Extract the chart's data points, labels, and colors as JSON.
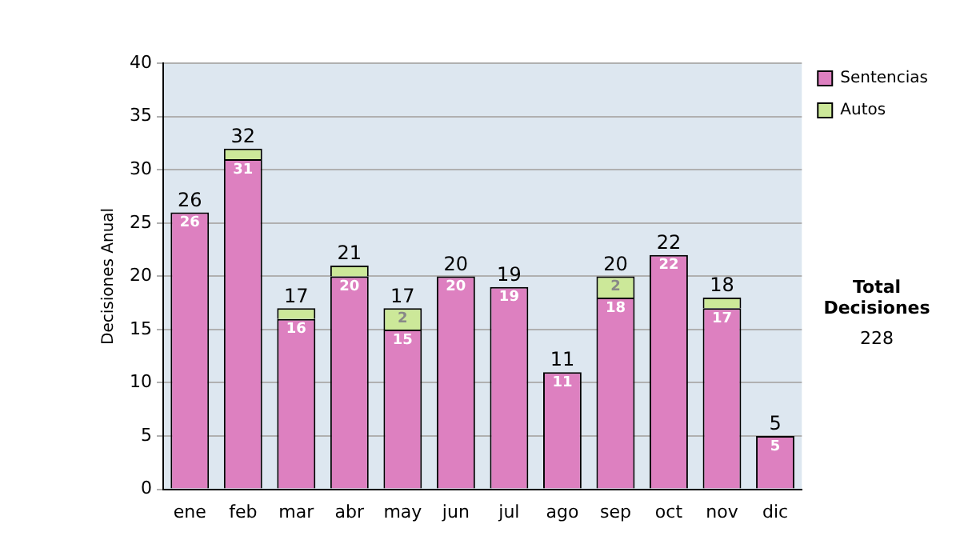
{
  "chart_data": {
    "type": "bar",
    "ylabel": "Decisiones Anual",
    "categories": [
      "ene",
      "feb",
      "mar",
      "abr",
      "may",
      "jun",
      "jul",
      "ago",
      "sep",
      "oct",
      "nov",
      "dic"
    ],
    "series": [
      {
        "name": "Sentencias",
        "color": "#dd80c0",
        "values": [
          26,
          31,
          16,
          20,
          15,
          20,
          19,
          11,
          18,
          22,
          17,
          5
        ],
        "value_labels": [
          "26",
          "31",
          "16",
          "20",
          "15",
          "20",
          "19",
          "11",
          "18",
          "22",
          "17",
          "5"
        ]
      },
      {
        "name": "Autos",
        "color": "#cce899",
        "values": [
          0,
          1,
          1,
          1,
          2,
          0,
          0,
          0,
          2,
          0,
          1,
          0
        ],
        "value_labels": [
          null,
          null,
          null,
          null,
          "2",
          null,
          null,
          null,
          "2",
          null,
          null,
          null
        ]
      }
    ],
    "stacked": true,
    "totals": [
      "26",
      "32",
      "17",
      "21",
      "17",
      "20",
      "19",
      "11",
      "20",
      "22",
      "18",
      "5"
    ],
    "ylim": [
      0,
      40
    ],
    "yticks": [
      0,
      5,
      10,
      15,
      20,
      25,
      30,
      35,
      40
    ],
    "grid": "y",
    "legend": "right",
    "annotations": [
      "Total Decisiones",
      "228"
    ]
  }
}
